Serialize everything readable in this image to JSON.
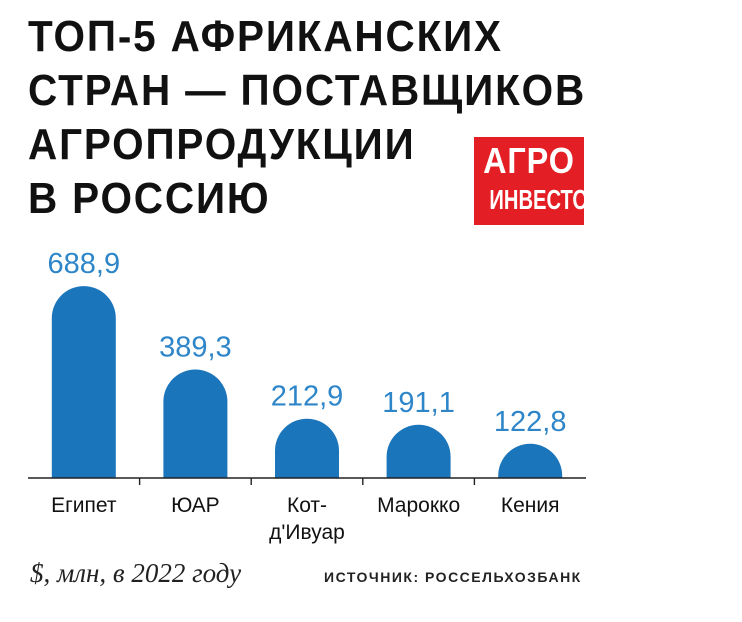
{
  "header": {
    "title_lines": [
      "ТОП-5 АФРИКАНСКИХ",
      "СТРАН — ПОСТАВЩИКОВ",
      "АГРОПРОДУКЦИИ",
      "В РОССИЮ"
    ],
    "logo_line1": "АГРО",
    "logo_line2": "ИНВЕСТОР"
  },
  "footer": {
    "unit": "$, млн, в 2022 году",
    "source": "ИСТОЧНИК: РОССЕЛЬХОЗБАНК"
  },
  "colors": {
    "bar": "#1b75bb",
    "value_label": "#2e86c9",
    "logo_bg": "#e31e24",
    "text": "#111111"
  },
  "chart_data": {
    "type": "bar",
    "title": "ТОП-5 АФРИКАНСКИХ СТРАН — ПОСТАВЩИКОВ АГРОПРОДУКЦИИ В РОССИЮ",
    "categories": [
      [
        "Египет"
      ],
      [
        "ЮАР"
      ],
      [
        "Кот-",
        "д'Ивуар"
      ],
      [
        "Марокко"
      ],
      [
        "Кения"
      ]
    ],
    "values": [
      688.9,
      389.3,
      212.9,
      191.1,
      122.8
    ],
    "value_labels": [
      "688,9",
      "389,3",
      "212,9",
      "191,1",
      "122,8"
    ],
    "ylim": [
      0,
      700
    ],
    "unit": "$, млн, в 2022 году",
    "grid": false,
    "legend": "none"
  }
}
